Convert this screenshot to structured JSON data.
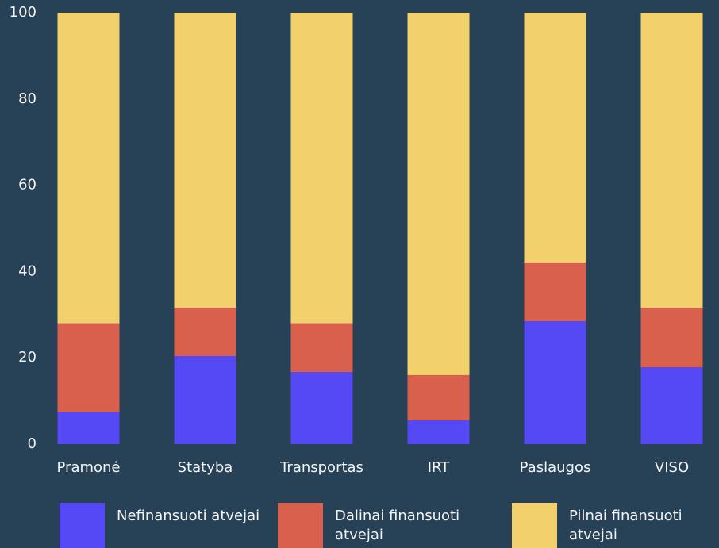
{
  "chart_data": {
    "type": "stacked_bar",
    "categories": [
      "Pramonė",
      "Statyba",
      "Transportas",
      "IRT",
      "Paslaugos",
      "VISO"
    ],
    "series": [
      {
        "name": "Nefinansuoti atvejai",
        "color": "#5548f5",
        "values": [
          7.4,
          20.4,
          16.7,
          5.5,
          28.5,
          17.8
        ]
      },
      {
        "name": "Dalinai finansuoti atvejai",
        "color": "#d9604c",
        "values": [
          20.6,
          11.2,
          11.3,
          10.5,
          13.6,
          13.8
        ]
      },
      {
        "name": "Pilnai finansuoti atvejai",
        "color": "#f2d06b",
        "values": [
          72,
          68.4,
          72,
          84,
          57.9,
          68.4
        ]
      }
    ],
    "ylim": [
      0,
      100
    ],
    "yticks": [
      0,
      20,
      40,
      60,
      80,
      100
    ],
    "grid": false,
    "legend": "bottom"
  }
}
